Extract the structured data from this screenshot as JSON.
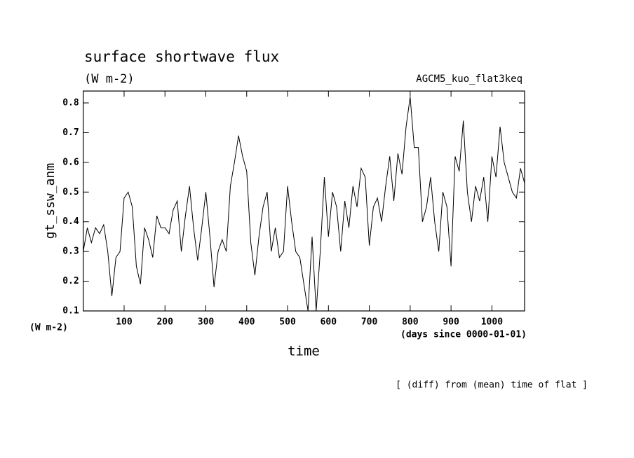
{
  "chart_data": {
    "type": "line",
    "title": "surface shortwave flux",
    "subtitle": "(W m-2)",
    "run_label": "AGCM5_kuo_flat3keq",
    "ylabel": "gt_ssw_anm",
    "y_unit": "(W m-2)",
    "xlabel": "time",
    "x_unit": "(days since 0000-01-01)",
    "note": "[ (diff) from (mean) time of flat ]",
    "color": "#000000",
    "x": [
      0,
      10,
      20,
      30,
      40,
      50,
      60,
      70,
      80,
      90,
      100,
      110,
      120,
      130,
      140,
      150,
      160,
      170,
      180,
      190,
      200,
      210,
      220,
      230,
      240,
      250,
      260,
      270,
      280,
      290,
      300,
      310,
      320,
      330,
      340,
      350,
      360,
      370,
      380,
      390,
      400,
      410,
      420,
      430,
      440,
      450,
      460,
      470,
      480,
      490,
      500,
      510,
      520,
      530,
      540,
      550,
      560,
      570,
      580,
      590,
      600,
      610,
      620,
      630,
      640,
      650,
      660,
      670,
      680,
      690,
      700,
      710,
      720,
      730,
      740,
      750,
      760,
      770,
      780,
      790,
      800,
      810,
      820,
      830,
      840,
      850,
      860,
      870,
      880,
      890,
      900,
      910,
      920,
      930,
      940,
      950,
      960,
      970,
      980,
      990,
      1000,
      1010,
      1020,
      1030,
      1040,
      1050,
      1060,
      1070,
      1080
    ],
    "values": [
      0.3,
      0.38,
      0.33,
      0.38,
      0.36,
      0.39,
      0.3,
      0.15,
      0.28,
      0.3,
      0.48,
      0.5,
      0.45,
      0.25,
      0.19,
      0.38,
      0.34,
      0.28,
      0.42,
      0.38,
      0.38,
      0.36,
      0.44,
      0.47,
      0.3,
      0.42,
      0.52,
      0.38,
      0.27,
      0.38,
      0.5,
      0.35,
      0.18,
      0.3,
      0.34,
      0.3,
      0.52,
      0.6,
      0.69,
      0.62,
      0.57,
      0.33,
      0.22,
      0.35,
      0.45,
      0.5,
      0.3,
      0.38,
      0.28,
      0.3,
      0.52,
      0.4,
      0.3,
      0.28,
      0.19,
      0.1,
      0.35,
      0.1,
      0.3,
      0.55,
      0.35,
      0.5,
      0.45,
      0.3,
      0.47,
      0.38,
      0.52,
      0.45,
      0.58,
      0.55,
      0.32,
      0.45,
      0.48,
      0.4,
      0.52,
      0.62,
      0.47,
      0.63,
      0.56,
      0.72,
      0.82,
      0.65,
      0.65,
      0.4,
      0.45,
      0.55,
      0.4,
      0.3,
      0.5,
      0.45,
      0.25,
      0.62,
      0.57,
      0.74,
      0.5,
      0.4,
      0.52,
      0.47,
      0.55,
      0.4,
      0.62,
      0.55,
      0.72,
      0.6,
      0.55,
      0.5,
      0.48,
      0.58,
      0.53
    ],
    "xlim": [
      0,
      1080
    ],
    "ylim": [
      0.1,
      0.84
    ],
    "xticks": [
      100,
      200,
      300,
      400,
      500,
      600,
      700,
      800,
      900,
      1000
    ],
    "yticks": [
      0.1,
      0.2,
      0.3,
      0.4,
      0.5,
      0.6,
      0.7,
      0.8
    ]
  }
}
